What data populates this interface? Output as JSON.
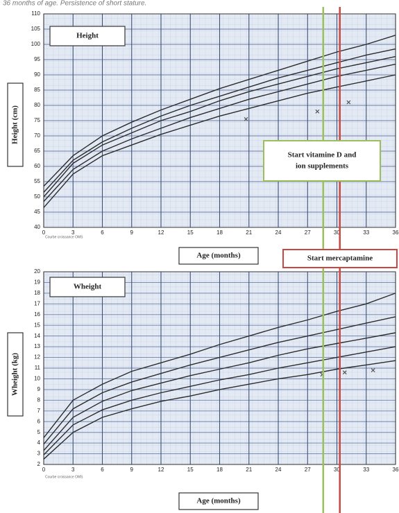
{
  "caption": "36 months of age. Persistence of short stature.",
  "markers": [
    {
      "label_lines": [
        "Start vitamine D and",
        "ion supplements"
      ],
      "x": 28.6,
      "color": "#9bbf5a"
    },
    {
      "label_lines": [
        "Start mercaptamine"
      ],
      "x": 30.3,
      "color": "#c9473f"
    }
  ],
  "chart_data": [
    {
      "type": "line",
      "title": "Height",
      "ylabel": "Height (cm)",
      "xlabel": "Age (months)",
      "source": "Courbe croissance OMS",
      "x": [
        0,
        3,
        6,
        9,
        12,
        15,
        18,
        21,
        24,
        27,
        30,
        33,
        36
      ],
      "xlim": [
        0,
        36
      ],
      "xticks": [
        0,
        3,
        6,
        9,
        12,
        15,
        18,
        21,
        24,
        27,
        30,
        33,
        36
      ],
      "ylim": [
        40,
        110
      ],
      "yticks": [
        40,
        45,
        50,
        55,
        60,
        65,
        70,
        75,
        80,
        85,
        90,
        95,
        100,
        105,
        110
      ],
      "grid": true,
      "series": [
        {
          "color": "#2b2b2b",
          "values": [
            53.5,
            63.5,
            70,
            74.5,
            78.5,
            82,
            85.5,
            88.5,
            91.5,
            94.5,
            97.5,
            100,
            103
          ]
        },
        {
          "color": "#2b2b2b",
          "values": [
            51.5,
            62,
            68,
            72.5,
            76.5,
            80,
            83,
            86,
            89,
            91.5,
            94,
            96.5,
            98.5
          ]
        },
        {
          "color": "#2b2b2b",
          "values": [
            50,
            61,
            67,
            71,
            75,
            78,
            81.5,
            84.5,
            87,
            89.5,
            92,
            94,
            96
          ]
        },
        {
          "color": "#2b2b2b",
          "values": [
            48.5,
            59,
            65,
            69,
            72.5,
            76,
            79,
            82,
            84.5,
            87,
            89.5,
            91.5,
            93.5
          ]
        },
        {
          "color": "#2b2b2b",
          "values": [
            46.5,
            57.5,
            63.5,
            67,
            70.5,
            73.5,
            76.5,
            79,
            81.5,
            84,
            86,
            88,
            90
          ]
        }
      ],
      "points": {
        "color": "#555555",
        "x": [
          20.7,
          28,
          31.2
        ],
        "values": [
          75.5,
          78,
          81
        ]
      }
    },
    {
      "type": "line",
      "title": "Wheight",
      "ylabel": "Wheight (kg)",
      "xlabel": "Age (months)",
      "source": "Courbe croissance OMS",
      "x": [
        0,
        3,
        6,
        9,
        12,
        15,
        18,
        21,
        24,
        27,
        30,
        33,
        36
      ],
      "xlim": [
        0,
        36
      ],
      "xticks": [
        0,
        3,
        6,
        9,
        12,
        15,
        18,
        21,
        24,
        27,
        30,
        33,
        36
      ],
      "ylim": [
        2,
        20
      ],
      "yticks": [
        2,
        3,
        4,
        5,
        6,
        7,
        8,
        9,
        10,
        11,
        12,
        13,
        14,
        15,
        16,
        17,
        18,
        19,
        20
      ],
      "grid": true,
      "series": [
        {
          "color": "#2b2b2b",
          "values": [
            4.5,
            8,
            9.5,
            10.7,
            11.5,
            12.3,
            13.2,
            14,
            14.8,
            15.5,
            16.3,
            17,
            18
          ]
        },
        {
          "color": "#2b2b2b",
          "values": [
            3.9,
            7.2,
            8.7,
            9.7,
            10.5,
            11.3,
            12,
            12.7,
            13.4,
            14,
            14.6,
            15.2,
            15.8
          ]
        },
        {
          "color": "#2b2b2b",
          "values": [
            3.3,
            6.4,
            7.9,
            8.9,
            9.6,
            10.3,
            10.9,
            11.5,
            12.2,
            12.8,
            13.3,
            13.8,
            14.3
          ]
        },
        {
          "color": "#2b2b2b",
          "values": [
            2.9,
            5.7,
            7.1,
            8,
            8.7,
            9.3,
            9.9,
            10.4,
            11,
            11.5,
            12,
            12.5,
            13
          ]
        },
        {
          "color": "#2b2b2b",
          "values": [
            2.5,
            5,
            6.4,
            7.2,
            7.9,
            8.4,
            9,
            9.5,
            10,
            10.4,
            10.9,
            11.3,
            11.7
          ]
        }
      ],
      "points": {
        "color": "#555555",
        "x": [
          28.5,
          30.8,
          33.7
        ],
        "values": [
          10.4,
          10.6,
          10.8
        ]
      }
    }
  ]
}
